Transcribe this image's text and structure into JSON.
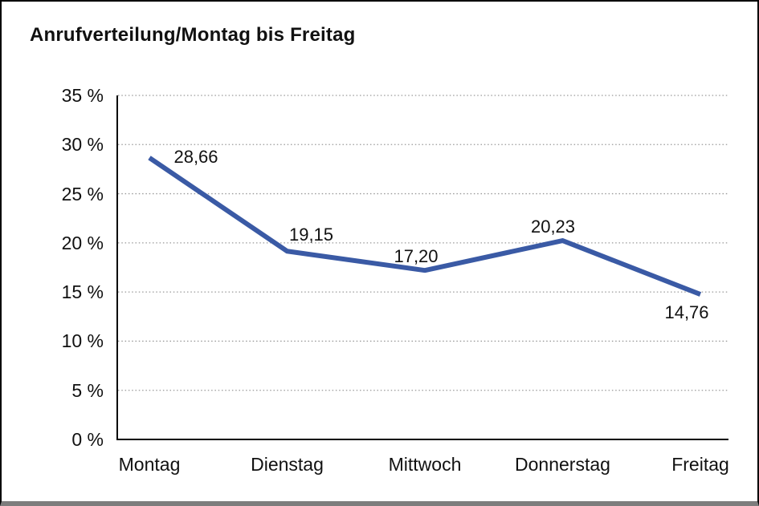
{
  "chart_data": {
    "type": "line",
    "title": "Anrufverteilung/Montag bis Freitag",
    "categories": [
      "Montag",
      "Dienstag",
      "Mittwoch",
      "Donnerstag",
      "Freitag"
    ],
    "values": [
      28.66,
      19.15,
      17.2,
      20.23,
      14.76
    ],
    "value_labels": [
      "28,66",
      "19,15",
      "17,20",
      "20,23",
      "14,76"
    ],
    "xlabel": "",
    "ylabel": "",
    "ylim": [
      0,
      35
    ],
    "ytick_step": 5,
    "ytick_labels": [
      "0 %",
      "5 %",
      "10 %",
      "15 %",
      "20 %",
      "25 %",
      "30 %",
      "35 %"
    ],
    "grid": "horizontal-dotted",
    "legend": "none",
    "colors": {
      "line": "#3A5AA5",
      "axis": "#000000",
      "grid": "#999999",
      "text": "#111111",
      "background": "#FFFFFF"
    }
  }
}
